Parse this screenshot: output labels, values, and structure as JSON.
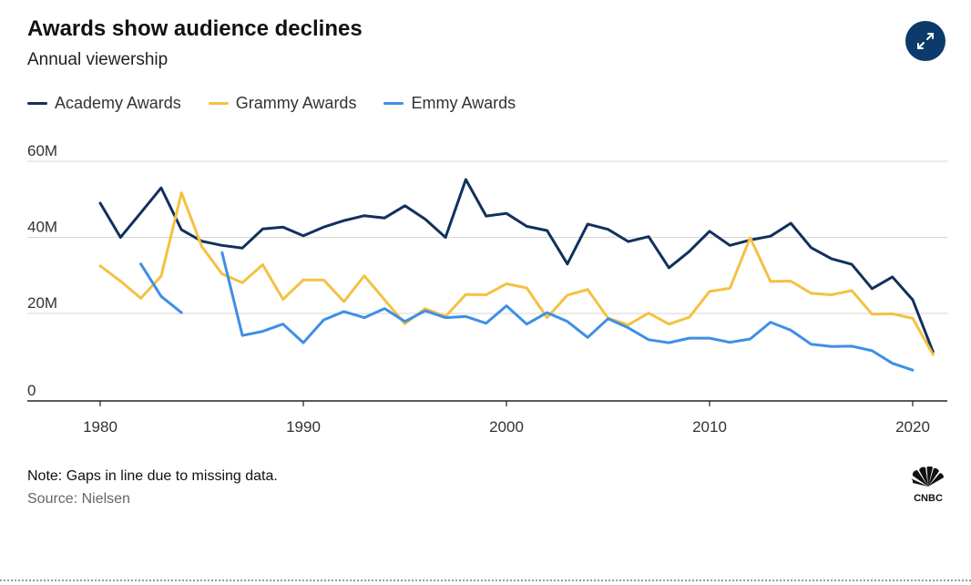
{
  "header": {
    "title": "Awards show audience declines",
    "subtitle": "Annual viewership",
    "expand_icon": "expand-arrows-icon"
  },
  "legend": [
    {
      "label": "Academy Awards",
      "color": "#12305e"
    },
    {
      "label": "Grammy Awards",
      "color": "#f4c142"
    },
    {
      "label": "Emmy Awards",
      "color": "#3f8fe6"
    }
  ],
  "chart_data": {
    "type": "line",
    "title": "Awards show audience declines",
    "subtitle": "Annual viewership",
    "xlabel": "",
    "ylabel": "",
    "xlim": [
      1976,
      2021.7
    ],
    "ylim": [
      -3,
      60
    ],
    "x_ticks": [
      1980,
      1990,
      2000,
      2010,
      2020
    ],
    "x_tick_labels": [
      "1980",
      "1990",
      "2000",
      "2010",
      "2020"
    ],
    "y_ticks": [
      0,
      20,
      40,
      60
    ],
    "y_tick_labels": [
      "0",
      "20M",
      "40M",
      "60M"
    ],
    "grid": "horizontal",
    "legend_position": "top-left",
    "series": [
      {
        "name": "Academy Awards",
        "color": "#12305e",
        "x": [
          1980,
          1981,
          1982,
          1983,
          1984,
          1985,
          1986,
          1987,
          1988,
          1989,
          1990,
          1991,
          1992,
          1993,
          1994,
          1995,
          1996,
          1997,
          1998,
          1999,
          2000,
          2001,
          2002,
          2003,
          2004,
          2005,
          2006,
          2007,
          2008,
          2009,
          2010,
          2011,
          2012,
          2013,
          2014,
          2015,
          2016,
          2017,
          2018,
          2019,
          2020,
          2021
        ],
        "values": [
          49,
          40,
          46.5,
          53,
          42,
          39,
          37.9,
          37.2,
          42.2,
          42.7,
          40.4,
          42.7,
          44.4,
          45.7,
          45.1,
          48.3,
          44.8,
          40,
          55.2,
          45.6,
          46.3,
          42.9,
          41.8,
          33,
          43.5,
          42.1,
          38.9,
          40.2,
          32,
          36.3,
          41.6,
          37.9,
          39.3,
          40.3,
          43.7,
          37.3,
          34.4,
          32.9,
          26.5,
          29.6,
          23.6,
          9.9
        ]
      },
      {
        "name": "Grammy Awards",
        "color": "#f4c142",
        "x": [
          1980,
          1981,
          1982,
          1983,
          1984,
          1985,
          1986,
          1987,
          1988,
          1989,
          1990,
          1991,
          1992,
          1993,
          1994,
          1995,
          1996,
          1997,
          1998,
          1999,
          2000,
          2001,
          2002,
          2003,
          2004,
          2005,
          2006,
          2007,
          2008,
          2009,
          2010,
          2011,
          2012,
          2013,
          2014,
          2015,
          2016,
          2017,
          2018,
          2019,
          2020,
          2021
        ],
        "values": [
          32.5,
          28.5,
          24,
          29.8,
          51.7,
          37.6,
          30.4,
          28.1,
          32.8,
          23.7,
          28.8,
          28.8,
          23.1,
          29.9,
          23.6,
          17.3,
          21.3,
          19.2,
          25,
          24.9,
          27.8,
          26.7,
          18.9,
          24.8,
          26.3,
          18.8,
          17,
          20.1,
          17.2,
          19,
          25.8,
          26.6,
          39.9,
          28.4,
          28.5,
          25.3,
          24.9,
          26,
          19.8,
          19.9,
          18.7,
          9.2
        ]
      },
      {
        "name": "Emmy Awards",
        "color": "#3f8fe6",
        "x": [
          1982,
          1983,
          1984,
          null,
          1986,
          1987,
          1988,
          1989,
          1990,
          1991,
          1992,
          1993,
          1994,
          1995,
          1996,
          1997,
          1998,
          1999,
          2000,
          2001,
          2002,
          2003,
          2004,
          2005,
          2006,
          2007,
          2008,
          2009,
          2010,
          2011,
          2012,
          2013,
          2014,
          2015,
          2016,
          2017,
          2018,
          2019,
          2020
        ],
        "values": [
          33,
          24.5,
          20.2,
          null,
          36,
          14.2,
          15.3,
          17.2,
          12.3,
          18.3,
          20.5,
          18.9,
          21.3,
          17.9,
          20.7,
          18.9,
          19.2,
          17.4,
          22,
          17.2,
          20.2,
          17.9,
          13.7,
          18.6,
          16.2,
          13.1,
          12.3,
          13.5,
          13.5,
          12.4,
          13.3,
          17.7,
          15.6,
          11.9,
          11.3,
          11.4,
          10.2,
          6.9,
          5.1
        ]
      }
    ]
  },
  "footer": {
    "note": "Note: Gaps in line due to missing data.",
    "source": "Source: Nielsen",
    "logo_text": "CNBC"
  }
}
